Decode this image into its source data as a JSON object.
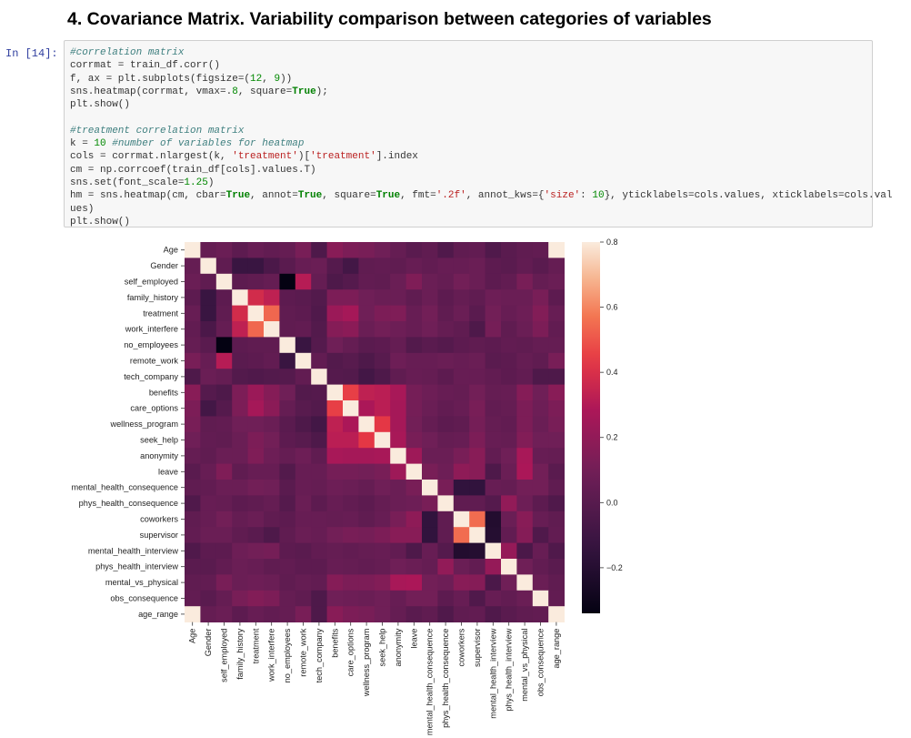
{
  "heading": "4. Covariance Matrix. Variability comparison between categories of variables",
  "prompt": "In [14]:",
  "code": [
    [
      {
        "t": "#correlation matrix",
        "c": "com"
      }
    ],
    [
      {
        "t": "corrmat = train_df.corr()"
      }
    ],
    [
      {
        "t": "f, ax = plt.subplots(figsize=("
      },
      {
        "t": "12",
        "c": "num"
      },
      {
        "t": ", "
      },
      {
        "t": "9",
        "c": "num"
      },
      {
        "t": "))"
      }
    ],
    [
      {
        "t": "sns.heatmap(corrmat, vmax=."
      },
      {
        "t": "8",
        "c": "num"
      },
      {
        "t": ", square="
      },
      {
        "t": "True",
        "c": "kw"
      },
      {
        "t": ");"
      }
    ],
    [
      {
        "t": "plt.show()"
      }
    ],
    [
      {
        "t": ""
      }
    ],
    [
      {
        "t": "#treatment correlation matrix",
        "c": "com"
      }
    ],
    [
      {
        "t": "k = "
      },
      {
        "t": "10",
        "c": "num"
      },
      {
        "t": " "
      },
      {
        "t": "#number of variables for heatmap",
        "c": "com"
      }
    ],
    [
      {
        "t": "cols = corrmat.nlargest(k, "
      },
      {
        "t": "'treatment'",
        "c": "str"
      },
      {
        "t": ")["
      },
      {
        "t": "'treatment'",
        "c": "str"
      },
      {
        "t": "].index"
      }
    ],
    [
      {
        "t": "cm = np.corrcoef(train_df[cols].values.T)"
      }
    ],
    [
      {
        "t": "sns.set(font_scale="
      },
      {
        "t": "1.25",
        "c": "num"
      },
      {
        "t": ")"
      }
    ],
    [
      {
        "t": "hm = sns.heatmap(cm, cbar="
      },
      {
        "t": "True",
        "c": "kw"
      },
      {
        "t": ", annot="
      },
      {
        "t": "True",
        "c": "kw"
      },
      {
        "t": ", square="
      },
      {
        "t": "True",
        "c": "kw"
      },
      {
        "t": ", fmt="
      },
      {
        "t": "'.2f'",
        "c": "str"
      },
      {
        "t": ", annot_kws={"
      },
      {
        "t": "'size'",
        "c": "str"
      },
      {
        "t": ": "
      },
      {
        "t": "10",
        "c": "num"
      },
      {
        "t": "}, yticklabels=cols.values, xticklabels=cols.val"
      }
    ],
    [
      {
        "t": "ues)"
      }
    ],
    [
      {
        "t": "plt.show()"
      }
    ]
  ],
  "chart_data": {
    "type": "heatmap",
    "title": "",
    "labels": [
      "Age",
      "Gender",
      "self_employed",
      "family_history",
      "treatment",
      "work_interfere",
      "no_employees",
      "remote_work",
      "tech_company",
      "benefits",
      "care_options",
      "wellness_program",
      "seek_help",
      "anonymity",
      "leave",
      "mental_health_consequence",
      "phys_health_consequence",
      "coworkers",
      "supervisor",
      "mental_health_interview",
      "phys_health_interview",
      "mental_vs_physical",
      "obs_consequence",
      "age_range"
    ],
    "vmin": -0.34,
    "vmax": 0.8,
    "colorbar_ticks": [
      0.8,
      0.6,
      0.4,
      0.2,
      0.0,
      -0.2
    ],
    "colorbar_tick_labels": [
      "0.8",
      "0.6",
      "0.4",
      "0.2",
      "0.0",
      "−0.2"
    ],
    "colormap": "rocket",
    "values": [
      [
        1.0,
        0.05,
        0.07,
        0.02,
        0.06,
        0.04,
        0.05,
        0.12,
        -0.04,
        0.17,
        0.13,
        0.12,
        0.09,
        0.05,
        0.01,
        0.03,
        -0.03,
        0.03,
        0.04,
        -0.03,
        0.01,
        0.03,
        0.04,
        0.8
      ],
      [
        0.05,
        1.0,
        0.03,
        -0.12,
        -0.12,
        -0.05,
        0.01,
        0.06,
        0.07,
        -0.01,
        -0.08,
        0.03,
        0.04,
        0.03,
        0.06,
        0.04,
        0.06,
        0.06,
        0.07,
        0.02,
        0.01,
        0.04,
        0.01,
        0.05
      ],
      [
        0.07,
        0.03,
        1.0,
        0.02,
        0.03,
        0.05,
        -0.34,
        0.31,
        0.05,
        -0.04,
        -0.01,
        0.04,
        0.03,
        0.07,
        0.14,
        0.07,
        0.05,
        0.1,
        0.07,
        0.02,
        0.04,
        0.12,
        0.05,
        0.07
      ],
      [
        0.02,
        -0.12,
        0.02,
        1.0,
        0.38,
        0.33,
        0.02,
        0.01,
        -0.02,
        0.13,
        0.13,
        0.09,
        0.07,
        0.07,
        0.03,
        0.07,
        0.02,
        0.05,
        0.03,
        0.08,
        0.07,
        0.07,
        0.12,
        0.02
      ],
      [
        0.06,
        -0.12,
        0.03,
        0.38,
        1.0,
        0.54,
        0.03,
        0.02,
        -0.03,
        0.23,
        0.26,
        0.09,
        0.13,
        0.14,
        0.06,
        0.1,
        0.03,
        0.07,
        0.01,
        0.1,
        0.06,
        0.08,
        0.15,
        0.06
      ],
      [
        0.04,
        -0.05,
        0.05,
        0.33,
        0.54,
        1.0,
        0.03,
        0.04,
        -0.02,
        0.16,
        0.18,
        0.07,
        0.1,
        0.08,
        0.06,
        0.09,
        0.05,
        0.03,
        -0.04,
        0.11,
        0.03,
        0.07,
        0.13,
        0.04
      ],
      [
        0.05,
        0.01,
        -0.34,
        0.02,
        0.03,
        0.03,
        1.0,
        -0.12,
        -0.01,
        0.09,
        0.05,
        0.01,
        0.02,
        0.05,
        -0.02,
        0.01,
        -0.01,
        0.02,
        0.03,
        0.02,
        0.04,
        0.03,
        0.05,
        0.05
      ],
      [
        0.12,
        0.06,
        0.31,
        0.01,
        0.02,
        0.04,
        -0.12,
        1.0,
        0.04,
        -0.02,
        0.0,
        -0.04,
        0.0,
        0.08,
        0.06,
        0.06,
        0.07,
        0.06,
        0.07,
        0.01,
        0.02,
        0.05,
        0.03,
        0.12
      ],
      [
        -0.04,
        0.07,
        0.05,
        -0.02,
        -0.03,
        -0.02,
        -0.01,
        0.04,
        1.0,
        -0.01,
        -0.02,
        -0.08,
        -0.04,
        0.03,
        0.06,
        0.05,
        0.02,
        0.06,
        0.06,
        0.04,
        0.02,
        0.04,
        -0.04,
        -0.04
      ],
      [
        0.17,
        -0.01,
        -0.04,
        0.13,
        0.23,
        0.16,
        0.09,
        -0.02,
        -0.01,
        1.0,
        0.45,
        0.33,
        0.32,
        0.27,
        0.11,
        0.08,
        0.06,
        0.05,
        0.1,
        0.05,
        0.06,
        0.16,
        0.09,
        0.17
      ],
      [
        0.13,
        -0.08,
        -0.01,
        0.13,
        0.26,
        0.18,
        0.05,
        0.0,
        -0.02,
        0.45,
        1.0,
        0.28,
        0.32,
        0.26,
        0.11,
        0.07,
        0.04,
        0.06,
        0.12,
        0.04,
        0.05,
        0.13,
        0.08,
        0.13
      ],
      [
        0.12,
        0.03,
        0.04,
        0.09,
        0.09,
        0.07,
        0.01,
        -0.04,
        -0.08,
        0.33,
        0.28,
        1.0,
        0.43,
        0.26,
        0.1,
        0.05,
        0.02,
        0.03,
        0.11,
        0.05,
        0.04,
        0.13,
        0.07,
        0.12
      ],
      [
        0.09,
        0.04,
        0.03,
        0.07,
        0.13,
        0.1,
        0.02,
        0.0,
        -0.04,
        0.32,
        0.32,
        0.43,
        1.0,
        0.27,
        0.12,
        0.09,
        0.05,
        0.06,
        0.13,
        0.06,
        0.05,
        0.15,
        0.09,
        0.09
      ],
      [
        0.05,
        0.03,
        0.07,
        0.07,
        0.14,
        0.08,
        0.05,
        0.08,
        0.03,
        0.27,
        0.26,
        0.26,
        0.27,
        1.0,
        0.24,
        0.07,
        0.07,
        0.12,
        0.17,
        0.04,
        0.09,
        0.27,
        0.06,
        0.05
      ],
      [
        0.01,
        0.06,
        0.14,
        0.03,
        0.06,
        0.06,
        -0.02,
        0.06,
        0.06,
        0.11,
        0.11,
        0.1,
        0.12,
        0.24,
        1.0,
        0.12,
        0.08,
        0.19,
        0.17,
        -0.04,
        0.07,
        0.28,
        0.1,
        0.01
      ],
      [
        0.03,
        0.04,
        0.07,
        0.07,
        0.1,
        0.09,
        0.01,
        0.06,
        0.05,
        0.08,
        0.07,
        0.05,
        0.09,
        0.07,
        0.12,
        1.0,
        0.12,
        -0.15,
        -0.15,
        0.06,
        0.05,
        0.1,
        0.1,
        0.03
      ],
      [
        -0.03,
        0.06,
        0.05,
        0.02,
        0.03,
        0.05,
        -0.01,
        0.07,
        0.02,
        0.06,
        0.04,
        0.02,
        0.05,
        0.07,
        0.08,
        0.12,
        1.0,
        0.03,
        0.03,
        -0.01,
        0.2,
        0.08,
        0.02,
        -0.03
      ],
      [
        0.03,
        0.06,
        0.1,
        0.05,
        0.07,
        0.03,
        0.02,
        0.06,
        0.06,
        0.05,
        0.06,
        0.03,
        0.06,
        0.12,
        0.19,
        -0.15,
        0.03,
        1.0,
        0.55,
        -0.21,
        0.07,
        0.17,
        0.06,
        0.03
      ],
      [
        0.04,
        0.07,
        0.07,
        0.03,
        0.01,
        -0.04,
        0.03,
        0.07,
        0.06,
        0.1,
        0.12,
        0.11,
        0.13,
        0.17,
        0.17,
        -0.15,
        0.03,
        0.55,
        1.0,
        -0.2,
        0.04,
        0.16,
        -0.03,
        0.04
      ],
      [
        -0.03,
        0.02,
        0.02,
        0.08,
        0.1,
        0.11,
        0.02,
        0.01,
        0.04,
        0.05,
        0.04,
        0.05,
        0.06,
        0.04,
        -0.04,
        0.06,
        -0.01,
        -0.21,
        -0.2,
        1.0,
        0.21,
        -0.05,
        0.06,
        -0.03
      ],
      [
        0.01,
        0.01,
        0.04,
        0.07,
        0.06,
        0.03,
        0.04,
        0.02,
        0.02,
        0.06,
        0.05,
        0.04,
        0.05,
        0.09,
        0.07,
        0.05,
        0.2,
        0.07,
        0.04,
        0.21,
        1.0,
        0.09,
        0.04,
        0.01
      ],
      [
        0.03,
        0.04,
        0.12,
        0.07,
        0.08,
        0.07,
        0.03,
        0.05,
        0.04,
        0.16,
        0.13,
        0.13,
        0.15,
        0.27,
        0.28,
        0.1,
        0.08,
        0.17,
        0.16,
        -0.05,
        0.09,
        1.0,
        0.07,
        0.03
      ],
      [
        0.04,
        0.01,
        0.05,
        0.12,
        0.15,
        0.13,
        0.05,
        0.03,
        -0.04,
        0.09,
        0.08,
        0.07,
        0.09,
        0.06,
        0.1,
        0.1,
        0.02,
        0.06,
        -0.03,
        0.06,
        0.04,
        0.07,
        1.0,
        0.04
      ],
      [
        0.8,
        0.05,
        0.07,
        0.02,
        0.06,
        0.04,
        0.05,
        0.12,
        -0.04,
        0.17,
        0.13,
        0.12,
        0.09,
        0.05,
        0.01,
        0.03,
        -0.03,
        0.03,
        0.04,
        -0.03,
        0.01,
        0.03,
        0.04,
        1.0
      ]
    ]
  }
}
